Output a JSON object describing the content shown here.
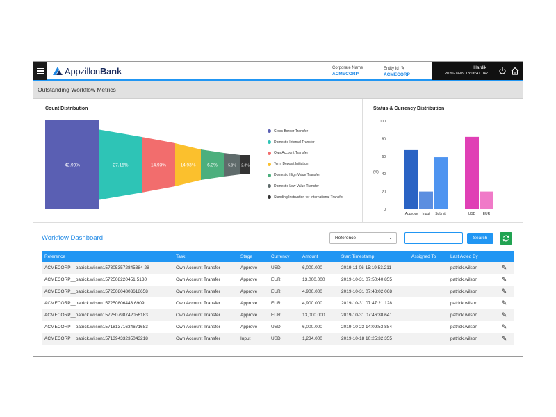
{
  "header": {
    "logo_prefix": "Appzillon",
    "logo_suffix": "Bank",
    "corporate_name_label": "Corporate Name",
    "corporate_name_value": "ACMECORP",
    "entity_id_label": "Entity Id",
    "entity_id_value": "ACMECORP",
    "user_name": "Hardik",
    "timestamp": "2020-09-09 13:06:41.042",
    "icons": [
      "menu-icon",
      "pencil-icon",
      "power-icon",
      "home-icon"
    ]
  },
  "page": {
    "title": "Outstanding Workflow Metrics"
  },
  "count_distribution": {
    "title": "Count Distribution",
    "segments": [
      {
        "name": "Cross Border Transfer",
        "label": "42.99%",
        "value": 42.99,
        "color": "#5a5fb3"
      },
      {
        "name": "Domestic Internal Transfer",
        "label": "27.15%",
        "value": 27.15,
        "color": "#2ec4b6"
      },
      {
        "name": "Own Account Transfer",
        "label": "14.93%",
        "value": 14.93,
        "color": "#f26d6d"
      },
      {
        "name": "Term Deposit Initiation",
        "label": "14.93%",
        "value": 14.93,
        "color": "#fbc02d"
      },
      {
        "name": "Domestic High Value Transfer",
        "label": "6.3%",
        "value": 6.3,
        "color": "#4caf7d"
      },
      {
        "name": "Domestic Low Value Transfer",
        "label": "5.9%",
        "value": 5.9,
        "color": "#5f6b6b"
      },
      {
        "name": "Standing Instruction for International Transfer",
        "label": "2.3%",
        "value": 2.3,
        "color": "#333333"
      }
    ]
  },
  "status_currency": {
    "title": "Status & Currency Distribution",
    "ylabel": "(%)",
    "yticks": [
      "100",
      "80",
      "60",
      "40",
      "20",
      "0"
    ],
    "ylim": [
      0,
      100
    ],
    "categories": [
      "Approve",
      "Input",
      "Submit",
      "USD",
      "EUR"
    ],
    "values": [
      67,
      20,
      59,
      82,
      20
    ],
    "colors": [
      "#2a63c4",
      "#5b8ee0",
      "#4e94f0",
      "#e040b5",
      "#f07ac8"
    ]
  },
  "chart_data": {
    "type": "bar",
    "title": "Status & Currency Distribution",
    "ylabel": "(%)",
    "ylim": [
      0,
      100
    ],
    "categories": [
      "Approve",
      "Input",
      "Submit",
      "USD",
      "EUR"
    ],
    "values": [
      67,
      20,
      59,
      82,
      20
    ]
  },
  "dashboard": {
    "title": "Workflow Dashboard",
    "filter_selected": "Reference",
    "search_placeholder": "",
    "search_label": "Search",
    "columns": [
      "Reference",
      "Task",
      "Stage",
      "Currency",
      "Amount",
      "Start Timestamp",
      "Assigned To",
      "Last Acted By",
      ""
    ],
    "rows": [
      [
        "ACMECORP__patrick.wilson1573053572845384 28",
        "Own Account Transfer",
        "Approve",
        "USD",
        "6,000.000",
        "2019-11-06 15:19:53.211",
        "",
        "patrick.wilson"
      ],
      [
        "ACMECORP__patrick.wilson1572508220451 5130",
        "Own Account Transfer",
        "Approve",
        "EUR",
        "13,000.000",
        "2019-10-31 07:50:40.855",
        "",
        "patrick.wilson"
      ],
      [
        "ACMECORP__patrick.wilson157250804803618658",
        "Own Account Transfer",
        "Approve",
        "EUR",
        "4,900.000",
        "2019-10-31 07:48:02.068",
        "",
        "patrick.wilson"
      ],
      [
        "ACMECORP__patrick.wilson157250806443 6909",
        "Own Account Transfer",
        "Approve",
        "EUR",
        "4,900.000",
        "2019-10-31 07:47:21.128",
        "",
        "patrick.wilson"
      ],
      [
        "ACMECORP__patrick.wilson157250798742056183",
        "Own Account Transfer",
        "Approve",
        "EUR",
        "13,000.000",
        "2019-10-31 07:46:38.641",
        "",
        "patrick.wilson"
      ],
      [
        "ACMECORP__patrick.wilson157181371634671683",
        "Own Account Transfer",
        "Approve",
        "USD",
        "6,000.000",
        "2019-10-23 14:09:53.884",
        "",
        "patrick.wilson"
      ],
      [
        "ACMECORP__patrick.wilson157139433235043218",
        "Own Account Transfer",
        "Input",
        "USD",
        "1,234.000",
        "2019-10-18 10:25:32.355",
        "",
        "patrick.wilson"
      ]
    ]
  }
}
